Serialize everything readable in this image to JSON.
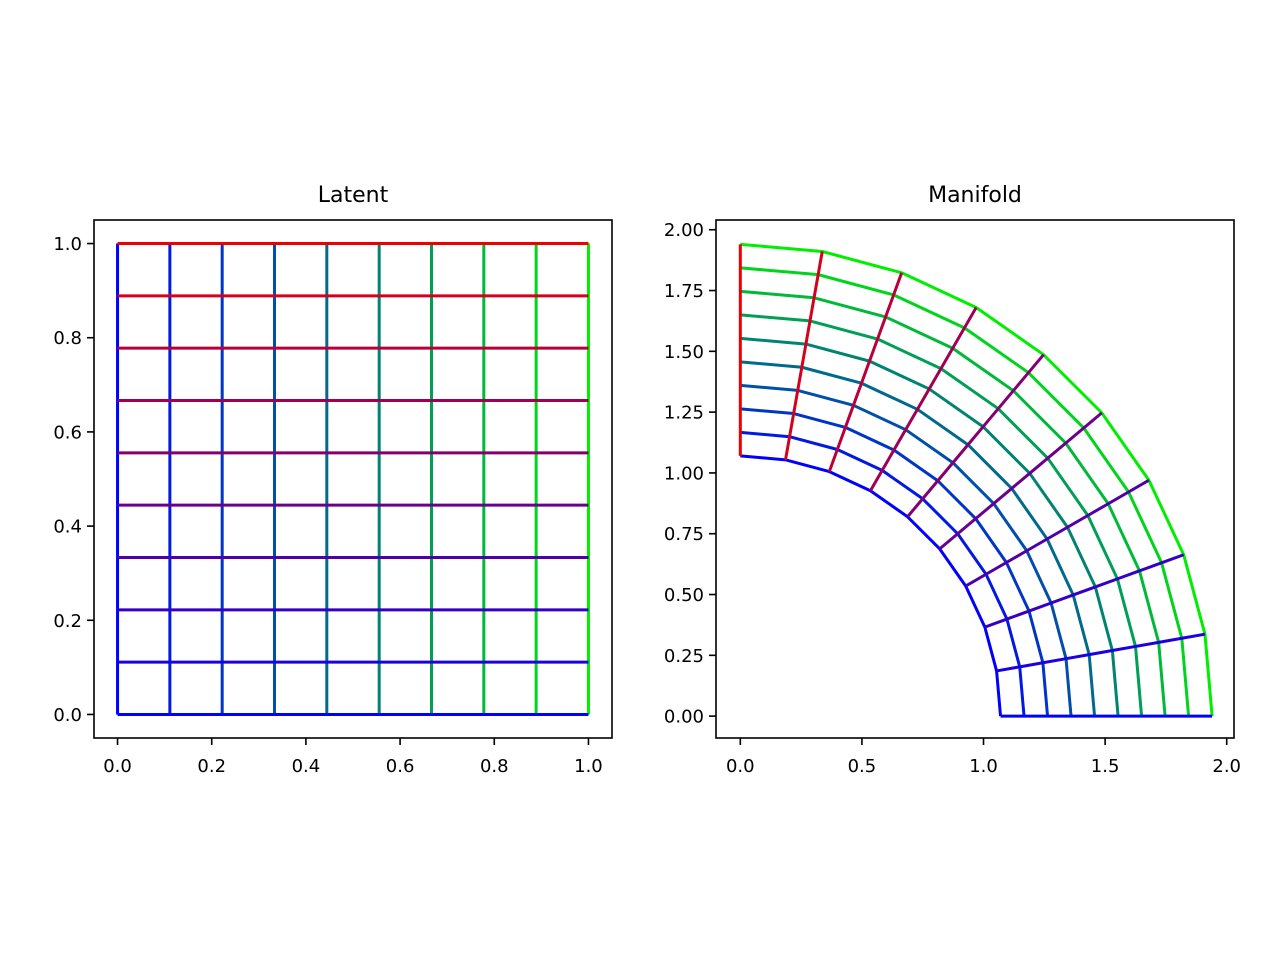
{
  "chart_data": [
    {
      "type": "line",
      "title": "Latent",
      "xlabel": "",
      "ylabel": "",
      "xlim": [
        -0.05,
        1.05
      ],
      "ylim": [
        -0.05,
        1.05
      ],
      "xticks": [
        "0.0",
        "0.2",
        "0.4",
        "0.6",
        "0.8",
        "1.0"
      ],
      "yticks": [
        "0.0",
        "0.2",
        "0.4",
        "0.6",
        "0.8",
        "1.0"
      ],
      "grid": false,
      "legend": "none",
      "color_map": {
        "u0_color": "#0000ff",
        "u1_color": "#00ee00",
        "v0_color": "#0000ff",
        "v1_color": "#ee0000"
      },
      "grid_u": [
        0,
        0.1111,
        0.2222,
        0.3333,
        0.4444,
        0.5556,
        0.6667,
        0.7778,
        0.8889,
        1.0
      ],
      "grid_v": [
        0,
        0.1111,
        0.2222,
        0.3333,
        0.4444,
        0.5556,
        0.6667,
        0.7778,
        0.8889,
        1.0
      ]
    },
    {
      "type": "line",
      "title": "Manifold",
      "xlabel": "",
      "ylabel": "",
      "xlim": [
        -0.1,
        2.03
      ],
      "ylim": [
        -0.09,
        2.04
      ],
      "xticks": [
        "0.0",
        "0.5",
        "1.0",
        "1.5",
        "2.0"
      ],
      "yticks": [
        "0.00",
        "0.25",
        "0.50",
        "0.75",
        "1.00",
        "1.25",
        "1.50",
        "1.75",
        "2.00"
      ],
      "grid": false,
      "legend": "none",
      "mapping": "polar: radius r = 1.07 + 0.87*u, angle = 90deg*v",
      "radius_range": [
        1.07,
        1.94
      ],
      "angle_range_deg": [
        0,
        90
      ],
      "grid_u": [
        0,
        0.1111,
        0.2222,
        0.3333,
        0.4444,
        0.5556,
        0.6667,
        0.7778,
        0.8889,
        1.0
      ],
      "grid_v": [
        0,
        0.1111,
        0.2222,
        0.3333,
        0.4444,
        0.5556,
        0.6667,
        0.7778,
        0.8889,
        1.0
      ]
    }
  ]
}
